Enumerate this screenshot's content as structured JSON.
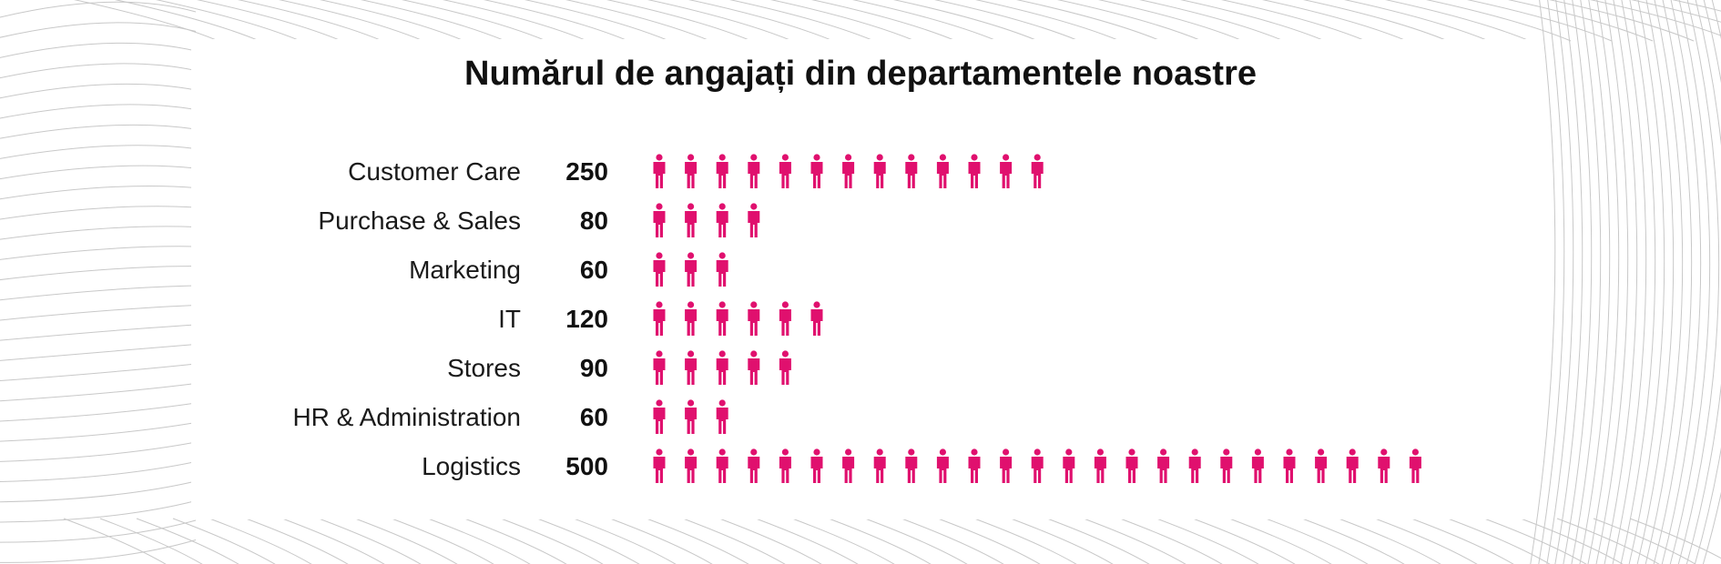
{
  "chart_data": {
    "type": "bar",
    "title": "Numărul de angajați din departamentele noastre",
    "categories": [
      "Customer Care",
      "Purchase & Sales",
      "Marketing",
      "IT",
      "Stores",
      "HR & Administration",
      "Logistics"
    ],
    "values": [
      250,
      80,
      60,
      120,
      90,
      60,
      500
    ],
    "icon_counts": [
      13,
      4,
      3,
      6,
      5,
      3,
      25
    ],
    "icon": "person-icon",
    "color": "#e0106e"
  },
  "theme": {
    "line_color": "#c8c8c8"
  }
}
